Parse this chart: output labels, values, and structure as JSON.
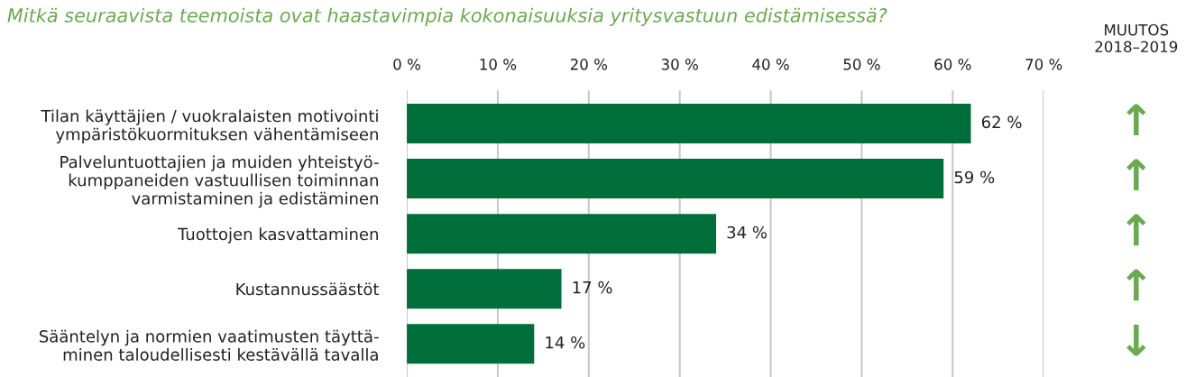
{
  "chart_data": {
    "type": "bar",
    "orientation": "horizontal",
    "title": "Mitkä seuraavista teemoista ovat haastavimpia kokonaisuuksia yritysvastuun edistämisessä?",
    "categories": [
      "Tilan käyttäjien / vuokralaisten motivointi\nympäristökuormituksen vähentämiseen",
      "Palveluntuottajien ja muiden yhteistyö-\nkumppaneiden vastuullisen toiminnan\nvarmistaminen ja edistäminen",
      "Tuottojen kasvattaminen",
      "Kustannussäästöt",
      "Sääntelyn ja normien vaatimusten täyttä-\nminen taloudellisesti kestävällä tavalla"
    ],
    "values": [
      62,
      59,
      34,
      17,
      14
    ],
    "value_labels": [
      "62 %",
      "59 %",
      "34 %",
      "17 %",
      "14 %"
    ],
    "color": "#006e3a",
    "xlim": [
      0,
      70
    ],
    "xticks": [
      {
        "value": 0,
        "label": "0 %"
      },
      {
        "value": 10,
        "label": "10 %"
      },
      {
        "value": 20,
        "label": "20 %"
      },
      {
        "value": 30,
        "label": "30 %"
      },
      {
        "value": 40,
        "label": "40 %"
      },
      {
        "value": 50,
        "label": "50 %"
      },
      {
        "value": 60,
        "label": "60 %"
      },
      {
        "value": 70,
        "label": "70 %"
      }
    ],
    "grid": "x",
    "annotations": [
      "MUUTOS\n2018–2019",
      "↑",
      "↑",
      "↑",
      "↑",
      "↓"
    ]
  }
}
